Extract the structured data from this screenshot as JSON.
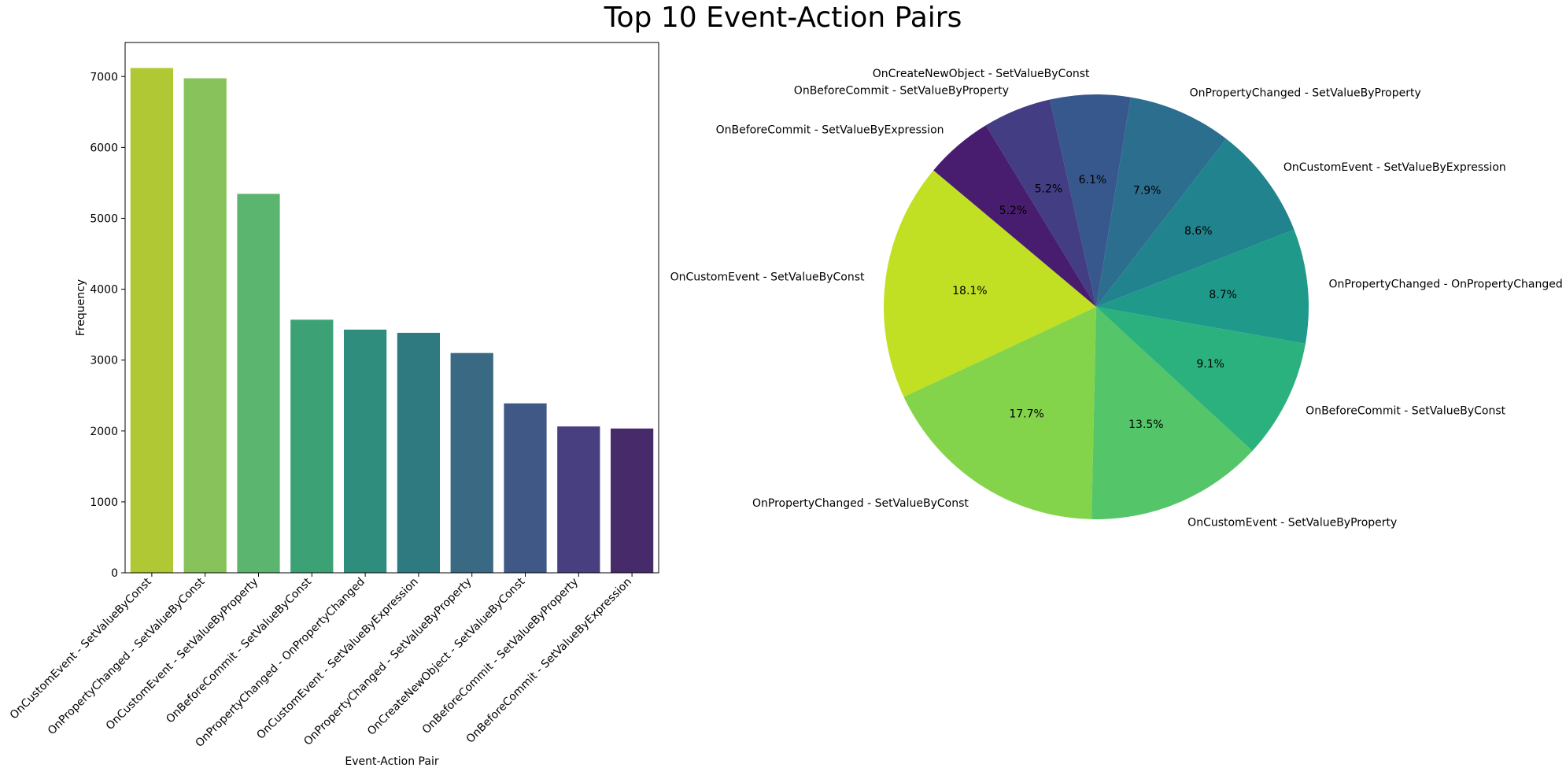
{
  "figure": {
    "title": "Top 10 Event-Action Pairs"
  },
  "chart_data": [
    {
      "type": "bar",
      "title": "",
      "xlabel": "Event-Action Pair",
      "ylabel": "Frequency",
      "ylim": [
        0,
        7480
      ],
      "yticks": [
        0,
        1000,
        2000,
        3000,
        4000,
        5000,
        6000,
        7000
      ],
      "grid": false,
      "categories": [
        "OnCustomEvent - SetValueByConst",
        "OnPropertyChanged - SetValueByConst",
        "OnCustomEvent - SetValueByProperty",
        "OnBeforeCommit - SetValueByConst",
        "OnPropertyChanged - OnPropertyChanged",
        "OnCustomEvent - SetValueByExpression",
        "OnPropertyChanged - SetValueByProperty",
        "OnCreateNewObject - SetValueByConst",
        "OnBeforeCommit - SetValueByProperty",
        "OnBeforeCommit - SetValueByExpression"
      ],
      "values": [
        7120,
        6975,
        5345,
        3570,
        3430,
        3385,
        3100,
        2390,
        2065,
        2035
      ],
      "colors": [
        "#b0c834",
        "#87c35a",
        "#5cb56e",
        "#3ca275",
        "#2f8d7d",
        "#2e7a80",
        "#3a6983",
        "#405886",
        "#473f80",
        "#472a6a"
      ]
    },
    {
      "type": "pie",
      "title": "",
      "slices": [
        {
          "label": "OnCustomEvent - SetValueByConst",
          "pct": 18.1,
          "color": "#c2e023"
        },
        {
          "label": "OnPropertyChanged - SetValueByConst",
          "pct": 17.7,
          "color": "#84d44b"
        },
        {
          "label": "OnCustomEvent - SetValueByProperty",
          "pct": 13.5,
          "color": "#54c568"
        },
        {
          "label": "OnBeforeCommit - SetValueByConst",
          "pct": 9.1,
          "color": "#2bb17e"
        },
        {
          "label": "OnPropertyChanged - OnPropertyChanged",
          "pct": 8.7,
          "color": "#1f9a8a"
        },
        {
          "label": "OnCustomEvent - SetValueByExpression",
          "pct": 8.6,
          "color": "#21838e"
        },
        {
          "label": "OnPropertyChanged - SetValueByProperty",
          "pct": 7.9,
          "color": "#2c6e8e"
        },
        {
          "label": "OnCreateNewObject - SetValueByConst",
          "pct": 6.1,
          "color": "#37588c"
        },
        {
          "label": "OnBeforeCommit - SetValueByProperty",
          "pct": 5.2,
          "color": "#433d84"
        },
        {
          "label": "OnBeforeCommit - SetValueByExpression",
          "pct": 5.2,
          "color": "#481d6f"
        }
      ]
    }
  ]
}
